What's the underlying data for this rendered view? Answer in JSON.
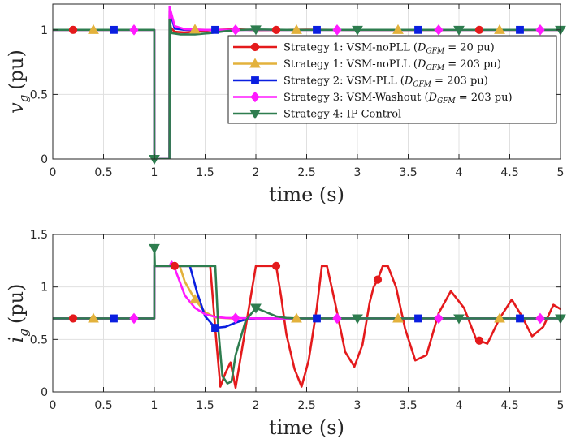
{
  "chart_data": [
    {
      "type": "line",
      "id": "voltage",
      "ylabel_symbol": "v",
      "ylabel_subscript": "g",
      "ylabel_unit": "(pu)",
      "xlabel": "time (s)",
      "xlim": [
        0,
        5
      ],
      "ylim": [
        0,
        1.2
      ],
      "xticks": [
        0,
        0.5,
        1,
        1.5,
        2,
        2.5,
        3,
        3.5,
        4,
        4.5,
        5
      ],
      "yticks": [
        0,
        0.5,
        1
      ],
      "grid": true,
      "legend_location": "right",
      "series": [
        {
          "name": "Strategy 1: VSM-noPLL (D_GFM = 20 pu)",
          "legend_label": "Strategy 1: VSM-noPLL (",
          "legend_suffix": " = 20 pu)",
          "color": "#e41a1c",
          "marker": "circle",
          "marker_x": [
            0.2,
            2.2,
            4.2
          ],
          "x": [
            0,
            0.999,
            1.0,
            1.149,
            1.15,
            1.16,
            1.2,
            1.3,
            1.45,
            1.6,
            1.8,
            2.0,
            2.5,
            3.0,
            4.0,
            5.0
          ],
          "y": [
            1,
            1,
            0,
            0,
            1.12,
            1.02,
            0.985,
            0.98,
            0.99,
            1.0,
            1.005,
            0.998,
            1.002,
            0.999,
            1.0,
            1.0
          ]
        },
        {
          "name": "Strategy 1: VSM-noPLL (D_GFM = 203 pu)",
          "legend_label": "Strategy 1: VSM-noPLL (",
          "legend_suffix": " = 203 pu)",
          "color": "#e3b23c",
          "marker": "triangle-up",
          "marker_x": [
            0.4,
            1.4,
            2.4,
            3.4,
            4.4
          ],
          "x": [
            0,
            0.999,
            1.0,
            1.149,
            1.15,
            1.2,
            1.3,
            1.5,
            2.0,
            3.0,
            5.0
          ],
          "y": [
            1,
            1,
            0,
            0,
            1.15,
            1.02,
            1.005,
            1.0,
            1.0,
            1.0,
            1.0
          ]
        },
        {
          "name": "Strategy 2: VSM-PLL (D_GFM = 203 pu)",
          "legend_label": "Strategy 2: VSM-PLL (",
          "legend_suffix": " = 203 pu)",
          "color": "#0a1fe0",
          "marker": "square",
          "marker_x": [
            0.6,
            1.6,
            2.6,
            3.6,
            4.6
          ],
          "x": [
            0,
            0.999,
            1.0,
            1.149,
            1.15,
            1.2,
            1.3,
            1.5,
            2.0,
            3.0,
            5.0
          ],
          "y": [
            1,
            1,
            0,
            0,
            1.15,
            1.01,
            1.0,
            1.0,
            1.0,
            1.0,
            1.0
          ]
        },
        {
          "name": "Strategy 3: VSM-Washout (D_GFM = 203 pu)",
          "legend_label": "Strategy 3: VSM-Washout (",
          "legend_suffix": " = 203 pu)",
          "color": "#ff1aff",
          "marker": "diamond",
          "marker_x": [
            0.8,
            1.8,
            2.8,
            3.8,
            4.8
          ],
          "x": [
            0,
            0.999,
            1.0,
            1.149,
            1.15,
            1.2,
            1.3,
            1.5,
            2.0,
            3.0,
            5.0
          ],
          "y": [
            1,
            1,
            0,
            0,
            1.18,
            1.03,
            1.005,
            1.0,
            1.0,
            1.0,
            1.0
          ]
        },
        {
          "name": "Strategy 4: IP Control",
          "legend_label": "Strategy 4: IP Control",
          "legend_suffix": "",
          "color": "#2e7d4f",
          "marker": "triangle-down",
          "marker_x": [
            1.0,
            2.0,
            3.0,
            4.0,
            5.0
          ],
          "x": [
            0,
            0.999,
            1.0,
            1.149,
            1.15,
            1.17,
            1.25,
            1.4,
            1.55,
            1.7,
            1.85,
            2.0,
            2.3,
            3.0,
            5.0
          ],
          "y": [
            1,
            1,
            0,
            0,
            1.08,
            0.975,
            0.965,
            0.965,
            0.975,
            0.99,
            1.0,
            1.003,
            1.0,
            1.0,
            1.0
          ]
        }
      ]
    },
    {
      "type": "line",
      "id": "current",
      "ylabel_symbol": "i",
      "ylabel_subscript": "g",
      "ylabel_unit": "(pu)",
      "xlabel": "time (s)",
      "xlim": [
        0,
        5
      ],
      "ylim": [
        0,
        1.5
      ],
      "xticks": [
        0,
        0.5,
        1,
        1.5,
        2,
        2.5,
        3,
        3.5,
        4,
        4.5,
        5
      ],
      "yticks": [
        0,
        0.5,
        1,
        1.5
      ],
      "grid": true,
      "series": [
        {
          "name": "Strategy 1: VSM-noPLL (D_GFM = 20 pu)",
          "color": "#e41a1c",
          "marker": "circle",
          "marker_x": [
            0.2,
            1.2,
            2.2,
            3.2,
            4.2
          ],
          "x": [
            0,
            0.999,
            1.0,
            1.01,
            1.15,
            1.55,
            1.6,
            1.65,
            1.7,
            1.75,
            1.8,
            1.9,
            2.0,
            2.2,
            2.25,
            2.3,
            2.38,
            2.45,
            2.52,
            2.6,
            2.65,
            2.7,
            2.78,
            2.88,
            2.97,
            3.05,
            3.12,
            3.16,
            3.2,
            3.25,
            3.3,
            3.38,
            3.47,
            3.57,
            3.68,
            3.8,
            3.92,
            4.05,
            4.17,
            4.28,
            4.4,
            4.52,
            4.62,
            4.72,
            4.83,
            4.93,
            5.0
          ],
          "y": [
            0.7,
            0.7,
            1.2,
            1.2,
            1.2,
            1.2,
            0.6,
            0.05,
            0.18,
            0.28,
            0.04,
            0.62,
            1.2,
            1.2,
            0.9,
            0.55,
            0.22,
            0.05,
            0.3,
            0.8,
            1.2,
            1.2,
            0.85,
            0.38,
            0.24,
            0.45,
            0.85,
            1.0,
            1.07,
            1.2,
            1.2,
            1.0,
            0.6,
            0.3,
            0.35,
            0.75,
            0.96,
            0.8,
            0.5,
            0.46,
            0.7,
            0.88,
            0.72,
            0.53,
            0.62,
            0.83,
            0.79
          ]
        },
        {
          "name": "Strategy 1: VSM-noPLL (D_GFM = 203 pu)",
          "color": "#e3b23c",
          "marker": "triangle-up",
          "marker_x": [
            0.4,
            1.4,
            2.4,
            3.4,
            4.4
          ],
          "x": [
            0,
            0.999,
            1.0,
            1.01,
            1.25,
            1.3,
            1.4,
            1.5,
            1.6,
            1.75,
            2.0,
            2.5,
            3.0,
            5.0
          ],
          "y": [
            0.7,
            0.7,
            1.2,
            1.2,
            1.2,
            1.05,
            0.88,
            0.76,
            0.71,
            0.7,
            0.7,
            0.7,
            0.7,
            0.7
          ]
        },
        {
          "name": "Strategy 2: VSM-PLL (D_GFM = 203 pu)",
          "color": "#0a1fe0",
          "marker": "square",
          "marker_x": [
            0.6,
            1.6,
            2.6,
            3.6,
            4.6
          ],
          "x": [
            0,
            0.999,
            1.0,
            1.01,
            1.35,
            1.42,
            1.5,
            1.6,
            1.7,
            1.8,
            1.9,
            2.0,
            2.2,
            2.5,
            3.0,
            5.0
          ],
          "y": [
            0.7,
            0.7,
            1.2,
            1.2,
            1.2,
            0.95,
            0.72,
            0.61,
            0.62,
            0.66,
            0.69,
            0.7,
            0.7,
            0.7,
            0.7,
            0.7
          ]
        },
        {
          "name": "Strategy 3: VSM-Washout (D_GFM = 203 pu)",
          "color": "#ff1aff",
          "marker": "diamond",
          "marker_x": [
            0.8,
            1.8,
            2.8,
            3.8,
            4.8
          ],
          "x": [
            0,
            0.999,
            1.0,
            1.01,
            1.15,
            1.17,
            1.2,
            1.25,
            1.3,
            1.4,
            1.5,
            1.6,
            1.7,
            2.0,
            2.5,
            3.0,
            5.0
          ],
          "y": [
            0.7,
            0.7,
            1.2,
            1.2,
            1.2,
            1.24,
            1.18,
            1.05,
            0.92,
            0.8,
            0.74,
            0.715,
            0.705,
            0.7,
            0.7,
            0.7,
            0.7
          ]
        },
        {
          "name": "Strategy 4: IP Control",
          "color": "#2e7d4f",
          "marker": "triangle-down",
          "marker_x": [
            1.0,
            2.0,
            3.0,
            4.0,
            5.0
          ],
          "x": [
            0,
            0.999,
            1.0,
            1.005,
            1.01,
            1.15,
            1.6,
            1.63,
            1.67,
            1.72,
            1.76,
            1.8,
            1.9,
            2.0,
            2.1,
            2.2,
            2.3,
            2.4,
            2.5,
            3.0,
            5.0
          ],
          "y": [
            0.7,
            0.7,
            1.37,
            1.2,
            1.2,
            1.2,
            1.2,
            0.6,
            0.15,
            0.08,
            0.1,
            0.35,
            0.68,
            0.8,
            0.76,
            0.72,
            0.705,
            0.7,
            0.7,
            0.7,
            0.7
          ]
        }
      ]
    }
  ]
}
